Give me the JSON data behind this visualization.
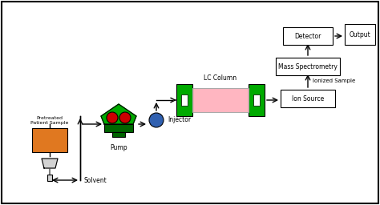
{
  "bg_color": "#ffffff",
  "border_color": "#000000",
  "arrow_color": "#000000",
  "green_color": "#00aa00",
  "pink_color": "#ffb6c1",
  "orange_color": "#e07820",
  "blue_color": "#3060b0",
  "red_color": "#cc0000",
  "dark_green": "#006600",
  "title": "",
  "labels": {
    "solvent": "Solvent",
    "pretreated": "Pretreated\nPatient Sample",
    "pump": "Pump",
    "injector": "Injector",
    "lc_column": "LC Column",
    "ion_source": "Ion Source",
    "ionized_sample": "Ionized Sample",
    "mass_spec": "Mass Spectrometry",
    "detector": "Detector",
    "output": "Output"
  }
}
